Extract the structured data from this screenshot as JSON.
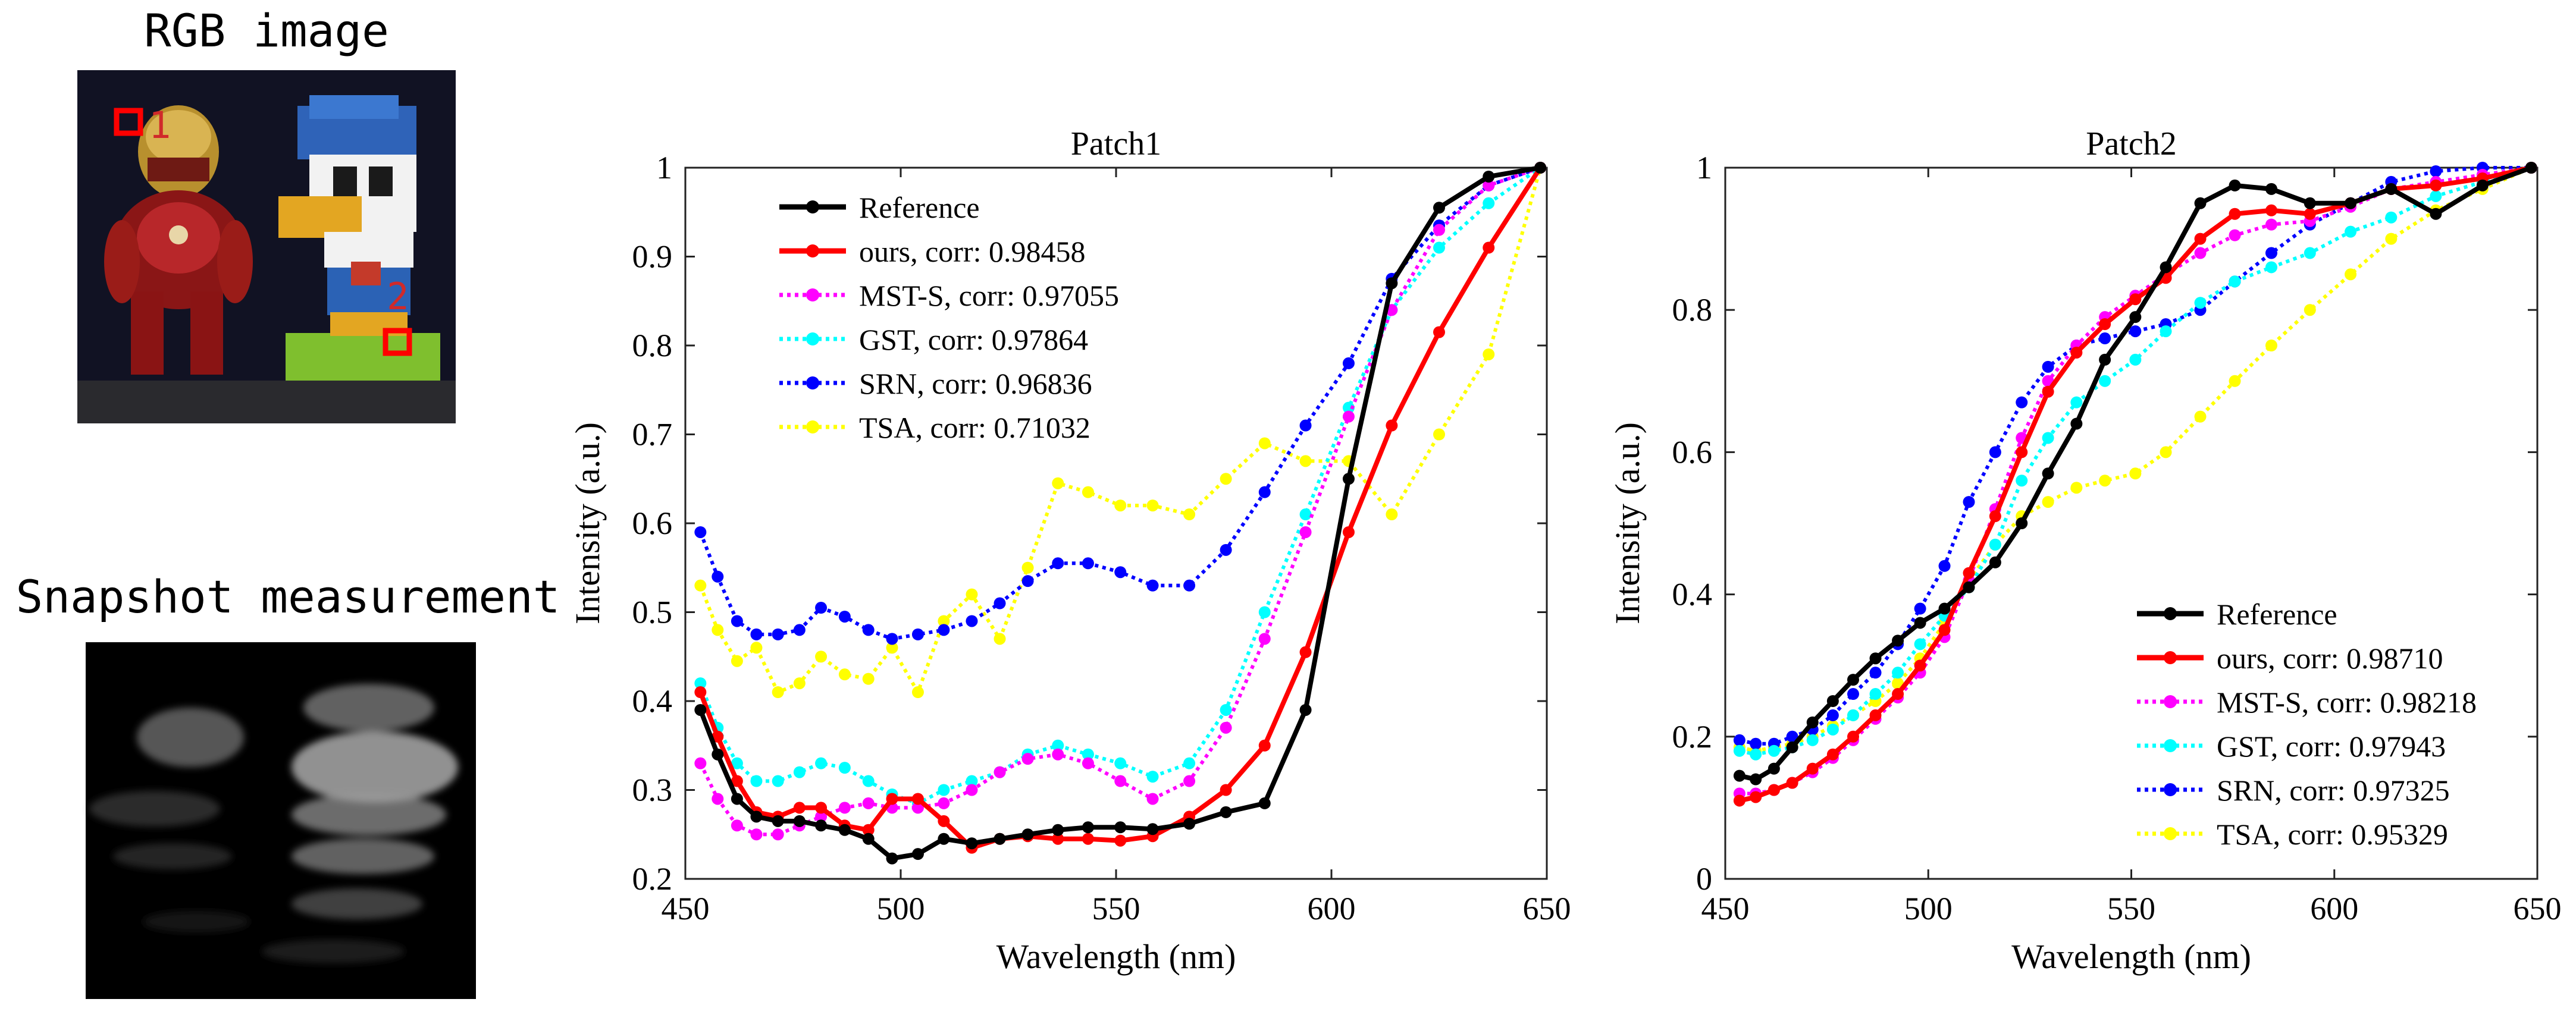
{
  "panels": {
    "rgb_title": "RGB image",
    "snapshot_title": "Snapshot measurement",
    "patch_marker_labels": [
      "1",
      "2"
    ]
  },
  "colors": {
    "Reference": "#000000",
    "ours": "#ff0000",
    "MST-S": "#ff00ff",
    "GST": "#00ffff",
    "SRN": "#0000ff",
    "TSA": "#ffff00",
    "marker_box": "#ff0000"
  },
  "chart_data": [
    {
      "type": "line",
      "title": "Patch1",
      "xlabel": "Wavelength (nm)",
      "ylabel": "Intensity (a.u.)",
      "xlim": [
        450,
        650
      ],
      "ylim": [
        0.2,
        1.0
      ],
      "xticks": [
        450,
        500,
        550,
        600,
        650
      ],
      "yticks": [
        0.2,
        0.3,
        0.4,
        0.5,
        0.6,
        0.7,
        0.8,
        0.9,
        1.0
      ],
      "ytick_labels": [
        "0.2",
        "0.3",
        "0.4",
        "0.5",
        "0.6",
        "0.7",
        "0.8",
        "0.9",
        "1"
      ],
      "legend_position": "top-left",
      "x": [
        453.5,
        457.5,
        462,
        466.5,
        471.5,
        476.5,
        481.5,
        487,
        492.5,
        498,
        504,
        510,
        516.5,
        523,
        529.5,
        536.5,
        543.5,
        551,
        558.5,
        567,
        575.5,
        584.5,
        594,
        604,
        614,
        625,
        636.5,
        648.5
      ],
      "series": [
        {
          "name": "Reference",
          "legend": "Reference",
          "values": [
            0.39,
            0.34,
            0.29,
            0.27,
            0.265,
            0.265,
            0.26,
            0.255,
            0.245,
            0.223,
            0.228,
            0.245,
            0.24,
            0.245,
            0.25,
            0.255,
            0.258,
            0.258,
            0.256,
            0.262,
            0.275,
            0.285,
            0.39,
            0.65,
            0.87,
            0.955,
            0.99,
            1.0
          ]
        },
        {
          "name": "ours",
          "legend": "ours, corr: 0.98458",
          "values": [
            0.41,
            0.36,
            0.31,
            0.275,
            0.27,
            0.28,
            0.28,
            0.26,
            0.255,
            0.29,
            0.29,
            0.265,
            0.235,
            0.245,
            0.248,
            0.245,
            0.245,
            0.243,
            0.248,
            0.27,
            0.3,
            0.35,
            0.455,
            0.59,
            0.71,
            0.815,
            0.91,
            1.0
          ]
        },
        {
          "name": "MST-S",
          "legend": "MST-S, corr: 0.97055",
          "values": [
            0.33,
            0.29,
            0.26,
            0.25,
            0.25,
            0.26,
            0.27,
            0.28,
            0.285,
            0.28,
            0.28,
            0.285,
            0.3,
            0.32,
            0.335,
            0.34,
            0.33,
            0.31,
            0.29,
            0.31,
            0.37,
            0.47,
            0.59,
            0.72,
            0.84,
            0.93,
            0.98,
            1.0
          ]
        },
        {
          "name": "GST",
          "legend": "GST, corr: 0.97864",
          "values": [
            0.42,
            0.37,
            0.33,
            0.31,
            0.31,
            0.32,
            0.33,
            0.325,
            0.31,
            0.295,
            0.285,
            0.3,
            0.31,
            0.32,
            0.34,
            0.35,
            0.34,
            0.33,
            0.315,
            0.33,
            0.39,
            0.5,
            0.61,
            0.73,
            0.84,
            0.91,
            0.96,
            1.0
          ]
        },
        {
          "name": "SRN",
          "legend": "SRN, corr: 0.96836",
          "values": [
            0.59,
            0.54,
            0.49,
            0.475,
            0.475,
            0.48,
            0.505,
            0.495,
            0.48,
            0.47,
            0.475,
            0.48,
            0.49,
            0.51,
            0.535,
            0.555,
            0.555,
            0.545,
            0.53,
            0.53,
            0.57,
            0.635,
            0.71,
            0.78,
            0.875,
            0.935,
            0.98,
            1.0
          ]
        },
        {
          "name": "TSA",
          "legend": "TSA, corr: 0.71032",
          "values": [
            0.53,
            0.48,
            0.445,
            0.46,
            0.41,
            0.42,
            0.45,
            0.43,
            0.425,
            0.46,
            0.41,
            0.49,
            0.52,
            0.47,
            0.55,
            0.645,
            0.635,
            0.62,
            0.62,
            0.61,
            0.65,
            0.69,
            0.67,
            0.67,
            0.61,
            0.7,
            0.79,
            1.0
          ]
        }
      ]
    },
    {
      "type": "line",
      "title": "Patch2",
      "xlabel": "Wavelength (nm)",
      "ylabel": "Intensity (a.u.)",
      "xlim": [
        450,
        650
      ],
      "ylim": [
        0.0,
        1.0
      ],
      "xticks": [
        450,
        500,
        550,
        600,
        650
      ],
      "yticks": [
        0.0,
        0.2,
        0.4,
        0.6,
        0.8,
        1.0
      ],
      "ytick_labels": [
        "0",
        "0.2",
        "0.4",
        "0.6",
        "0.8",
        "1"
      ],
      "legend_position": "bottom-right",
      "x": [
        453.5,
        457.5,
        462,
        466.5,
        471.5,
        476.5,
        481.5,
        487,
        492.5,
        498,
        504,
        510,
        516.5,
        523,
        529.5,
        536.5,
        543.5,
        551,
        558.5,
        567,
        575.5,
        584.5,
        594,
        604,
        614,
        625,
        636.5,
        648.5
      ],
      "series": [
        {
          "name": "Reference",
          "legend": "Reference",
          "values": [
            0.145,
            0.14,
            0.155,
            0.185,
            0.22,
            0.25,
            0.28,
            0.31,
            0.335,
            0.36,
            0.38,
            0.41,
            0.445,
            0.5,
            0.57,
            0.64,
            0.73,
            0.79,
            0.86,
            0.95,
            0.975,
            0.97,
            0.95,
            0.95,
            0.97,
            0.935,
            0.975,
            1.0
          ]
        },
        {
          "name": "ours",
          "legend": "ours, corr: 0.98710",
          "values": [
            0.11,
            0.115,
            0.125,
            0.135,
            0.155,
            0.175,
            0.2,
            0.23,
            0.26,
            0.3,
            0.35,
            0.43,
            0.51,
            0.6,
            0.685,
            0.74,
            0.78,
            0.815,
            0.845,
            0.9,
            0.935,
            0.94,
            0.935,
            0.95,
            0.97,
            0.975,
            0.985,
            1.0
          ]
        },
        {
          "name": "MST-S",
          "legend": "MST-S, corr: 0.98218",
          "values": [
            0.12,
            0.12,
            0.125,
            0.135,
            0.15,
            0.17,
            0.195,
            0.225,
            0.255,
            0.29,
            0.34,
            0.42,
            0.52,
            0.62,
            0.7,
            0.75,
            0.79,
            0.82,
            0.85,
            0.88,
            0.905,
            0.92,
            0.925,
            0.945,
            0.97,
            0.98,
            0.99,
            1.0
          ]
        },
        {
          "name": "GST",
          "legend": "GST, corr: 0.97943",
          "values": [
            0.18,
            0.175,
            0.18,
            0.185,
            0.195,
            0.21,
            0.23,
            0.26,
            0.29,
            0.33,
            0.37,
            0.41,
            0.47,
            0.56,
            0.62,
            0.67,
            0.7,
            0.73,
            0.77,
            0.81,
            0.84,
            0.86,
            0.88,
            0.91,
            0.93,
            0.96,
            0.98,
            1.0
          ]
        },
        {
          "name": "SRN",
          "legend": "SRN, corr: 0.97325",
          "values": [
            0.195,
            0.19,
            0.19,
            0.2,
            0.21,
            0.23,
            0.26,
            0.29,
            0.33,
            0.38,
            0.44,
            0.53,
            0.6,
            0.67,
            0.72,
            0.75,
            0.76,
            0.77,
            0.78,
            0.8,
            0.84,
            0.88,
            0.92,
            0.95,
            0.98,
            0.995,
            1.0,
            1.0
          ]
        },
        {
          "name": "TSA",
          "legend": "TSA, corr: 0.95329",
          "values": [
            0.185,
            0.18,
            0.185,
            0.19,
            0.2,
            0.215,
            0.23,
            0.25,
            0.275,
            0.31,
            0.36,
            0.42,
            0.47,
            0.51,
            0.53,
            0.55,
            0.56,
            0.57,
            0.6,
            0.65,
            0.7,
            0.75,
            0.8,
            0.85,
            0.9,
            0.94,
            0.97,
            1.0
          ]
        }
      ]
    }
  ]
}
